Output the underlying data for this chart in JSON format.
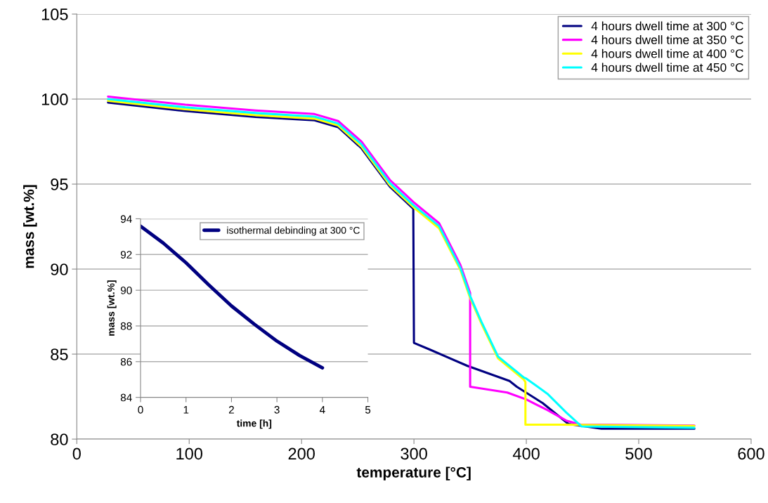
{
  "chart_data": [
    {
      "type": "line",
      "xlabel": "temperature [°C]",
      "ylabel": "mass [wt.%]",
      "xlim": [
        0,
        600
      ],
      "ylim": [
        80,
        105
      ],
      "xticks": [
        0,
        100,
        200,
        300,
        400,
        500,
        600
      ],
      "yticks": [
        80,
        85,
        90,
        95,
        100,
        105
      ],
      "grid": "y",
      "legend": "top right",
      "line_style": "solid",
      "series": [
        {
          "name": "4 hours dwell time at 300 °C",
          "color": "#000080",
          "x": [
            27.8,
            96.5,
            159,
            211.5,
            232.5,
            253.4,
            264,
            278.5,
            299.4,
            300,
            314,
            347.5,
            385,
            391.5,
            414.5,
            437.5,
            466.8,
            549.5
          ],
          "values": [
            99.8,
            99.3,
            98.95,
            98.75,
            98.35,
            97.1,
            96.15,
            94.85,
            93.55,
            85.66,
            85.27,
            84.31,
            83.42,
            83.08,
            82.12,
            80.89,
            80.61,
            80.61
          ]
        },
        {
          "name": "4 hours dwell time at 350 °C",
          "color": "#ff00ff",
          "x": [
            27.8,
            96.5,
            159,
            211.5,
            232.5,
            253.4,
            264,
            278.5,
            299.4,
            322.4,
            341.3,
            350,
            350,
            383,
            400,
            418.7,
            435.5,
            448,
            549.5
          ],
          "values": [
            100.15,
            99.67,
            99.33,
            99.12,
            98.71,
            97.5,
            96.55,
            95.25,
            93.95,
            92.7,
            90.25,
            88.6,
            83.08,
            82.74,
            82.33,
            81.71,
            81.09,
            80.86,
            80.8
          ]
        },
        {
          "name": "4 hours dwell time at 400 °C",
          "color": "#ffff00",
          "x": [
            27.8,
            96.5,
            159,
            211.5,
            232.5,
            253.4,
            264,
            278.5,
            299.4,
            322.4,
            341.3,
            350,
            360,
            374.8,
            397.8,
            399.2,
            399.2,
            430,
            549.5
          ],
          "values": [
            99.9,
            99.4,
            99.05,
            98.85,
            98.45,
            97.2,
            96.25,
            94.95,
            93.65,
            92.4,
            89.95,
            88.3,
            86.8,
            84.75,
            83.5,
            83.35,
            80.85,
            80.85,
            80.78
          ]
        },
        {
          "name": "4 hours dwell time at 450 °C",
          "color": "#00ffff",
          "x": [
            27.8,
            96.5,
            159,
            211.5,
            232.5,
            253.4,
            264,
            278.5,
            299.4,
            322.4,
            341.3,
            350,
            360,
            374.8,
            397.8,
            400,
            418.7,
            435.5,
            449,
            549.5
          ],
          "values": [
            100,
            99.52,
            99.18,
            98.97,
            98.56,
            97.33,
            96.37,
            95.07,
            93.77,
            92.53,
            90.07,
            88.42,
            86.91,
            84.86,
            83.62,
            83.56,
            82.67,
            81.57,
            80.75,
            80.67
          ]
        }
      ]
    },
    {
      "type": "line",
      "xlabel": "time [h]",
      "ylabel": "mass [wt.%]",
      "xlim": [
        0,
        5
      ],
      "ylim": [
        84,
        94
      ],
      "xticks": [
        0,
        1,
        2,
        3,
        4,
        5
      ],
      "yticks": [
        84,
        86,
        88,
        90,
        92,
        94
      ],
      "grid": "y",
      "legend": "top right",
      "line_style": "solid",
      "series": [
        {
          "name": "isothermal debinding at 300 °C",
          "color": "#000080",
          "x": [
            0,
            0.5,
            1,
            1.5,
            2,
            2.5,
            3,
            3.5,
            4
          ],
          "values": [
            93.59,
            92.64,
            91.54,
            90.3,
            89.12,
            88.1,
            87.15,
            86.34,
            85.65
          ]
        }
      ]
    }
  ]
}
